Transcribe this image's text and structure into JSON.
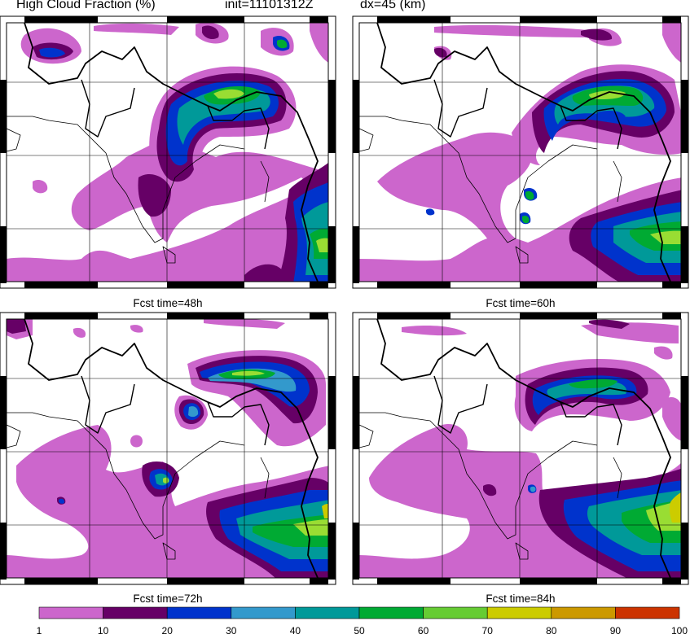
{
  "header": {
    "title": "High Cloud Fraction (%)",
    "init": "init=11101312Z",
    "dx": "dx=45 (km)"
  },
  "panels": [
    {
      "caption": ""
    },
    {
      "caption": ""
    },
    {
      "caption": "Fcst time=48h"
    },
    {
      "caption": "Fcst time=60h"
    },
    {
      "caption": "Fcst time=72h"
    },
    {
      "caption": "Fcst time=84h"
    }
  ],
  "colorbar": {
    "levels": [
      "1",
      "10",
      "20",
      "30",
      "40",
      "50",
      "60",
      "70",
      "80",
      "90",
      "100"
    ],
    "colors": [
      "#cc66cc",
      "#660066",
      "#0033cc",
      "#3399cc",
      "#009999",
      "#00aa33",
      "#66cc33",
      "#cccc00",
      "#cc9900",
      "#cc3300"
    ]
  },
  "colors": {
    "light": "#cc66cc",
    "dark_purple": "#660066",
    "blue": "#0033cc",
    "teal": "#009999",
    "green": "#00aa33",
    "yellow_green": "#99dd33"
  }
}
